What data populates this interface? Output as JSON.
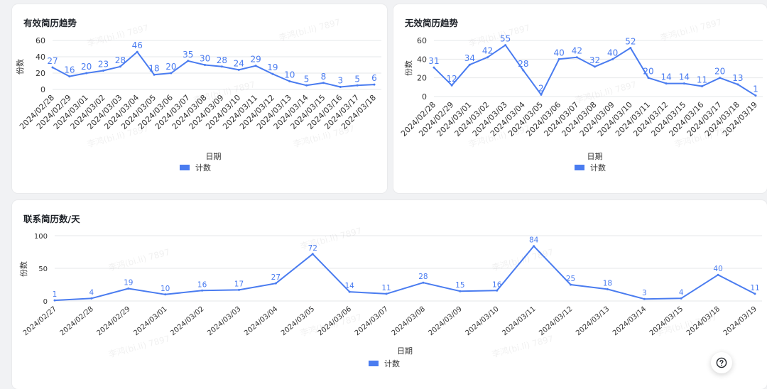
{
  "charts": [
    {
      "title": "有效简历趋势"
    },
    {
      "title": "无效简历趋势"
    },
    {
      "title": "联系简历数/天"
    }
  ],
  "chart_data": [
    {
      "type": "line",
      "title": "有效简历趋势",
      "xlabel": "日期",
      "ylabel": "份数",
      "ylim": [
        0,
        60
      ],
      "yticks": [
        0,
        20,
        40,
        60
      ],
      "grid": true,
      "legend_position": "bottom",
      "color": "#4a7cf0",
      "categories": [
        "2024/02/28",
        "2024/02/29",
        "2024/03/01",
        "2024/03/02",
        "2024/03/03",
        "2024/03/04",
        "2024/03/05",
        "2024/03/06",
        "2024/03/07",
        "2024/03/08",
        "2024/03/09",
        "2024/03/10",
        "2024/03/11",
        "2024/03/12",
        "2024/03/13",
        "2024/03/14",
        "2024/03/15",
        "2024/03/16",
        "2024/03/17",
        "2024/03/18"
      ],
      "series": [
        {
          "name": "计数",
          "values": [
            27,
            16,
            20,
            23,
            28,
            46,
            18,
            20,
            35,
            30,
            28,
            24,
            29,
            19,
            10,
            5,
            8,
            3,
            5,
            6
          ]
        }
      ]
    },
    {
      "type": "line",
      "title": "无效简历趋势",
      "xlabel": "日期",
      "ylabel": "份数",
      "ylim": [
        0,
        60
      ],
      "yticks": [
        0,
        20,
        40,
        60
      ],
      "grid": true,
      "legend_position": "bottom",
      "color": "#4a7cf0",
      "categories": [
        "2024/02/28",
        "2024/02/29",
        "2024/03/01",
        "2024/03/02",
        "2024/03/03",
        "2024/03/04",
        "2024/03/05",
        "2024/03/06",
        "2024/03/07",
        "2024/03/08",
        "2024/03/09",
        "2024/03/10",
        "2024/03/11",
        "2024/03/12",
        "2024/03/15",
        "2024/03/16",
        "2024/03/17",
        "2024/03/18",
        "2024/03/19"
      ],
      "series": [
        {
          "name": "计数",
          "values": [
            31,
            12,
            34,
            42,
            55,
            28,
            2,
            40,
            42,
            32,
            40,
            52,
            20,
            14,
            14,
            11,
            20,
            13,
            1
          ]
        }
      ]
    },
    {
      "type": "line",
      "title": "联系简历数/天",
      "xlabel": "日期",
      "ylabel": "份数",
      "ylim": [
        0,
        100
      ],
      "yticks": [
        0,
        50,
        100
      ],
      "grid": true,
      "legend_position": "bottom",
      "color": "#4a7cf0",
      "categories": [
        "2024/02/27",
        "2024/02/28",
        "2024/02/29",
        "2024/03/01",
        "2024/03/02",
        "2024/03/03",
        "2024/03/04",
        "2024/03/05",
        "2024/03/06",
        "2024/03/07",
        "2024/03/08",
        "2024/03/09",
        "2024/03/10",
        "2024/03/11",
        "2024/03/12",
        "2024/03/13",
        "2024/03/14",
        "2024/03/15",
        "2024/03/18",
        "2024/03/19"
      ],
      "series": [
        {
          "name": "计数",
          "values": [
            1,
            4,
            19,
            10,
            16,
            17,
            27,
            72,
            14,
            11,
            28,
            15,
            16,
            84,
            25,
            18,
            3,
            4,
            40,
            11
          ]
        }
      ]
    }
  ],
  "watermark": "李鸿(bi.li) 7897",
  "help_icon": "question-circle-icon"
}
